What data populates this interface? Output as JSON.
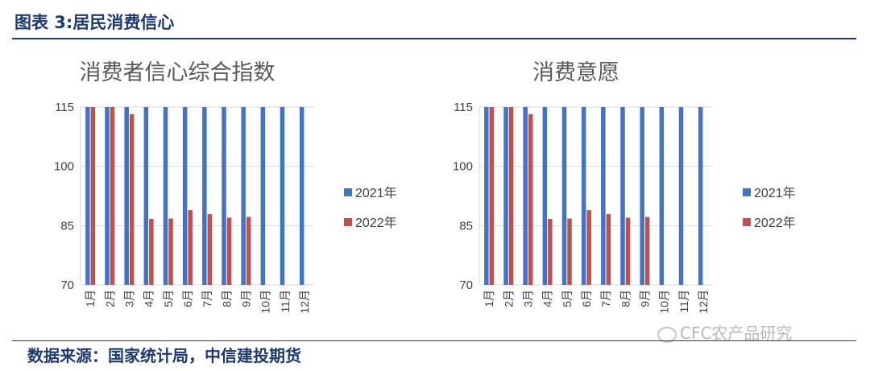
{
  "figure": {
    "title": "图表 3:居民消费信心",
    "source": "数据来源：国家统计局，中信建投期货",
    "watermark": "CFC农产品研究"
  },
  "colors": {
    "series_2021": "#4472c4",
    "series_2022": "#c0504d",
    "axis": "#d9d9d9",
    "rule": "#1f3a6b"
  },
  "chart_data": [
    {
      "type": "bar",
      "title": "消费者信心综合指数",
      "categories": [
        "1月",
        "2月",
        "3月",
        "4月",
        "5月",
        "6月",
        "7月",
        "8月",
        "9月",
        "10月",
        "11月",
        "12月"
      ],
      "series": [
        {
          "name": "2021年",
          "values": [
            115,
            115,
            115,
            115,
            115,
            115,
            115,
            115,
            115,
            115,
            115,
            115
          ]
        },
        {
          "name": "2022年",
          "values": [
            115,
            115,
            113.2,
            86.7,
            86.8,
            88.9,
            87.9,
            87.0,
            87.2,
            null,
            null,
            null
          ]
        }
      ],
      "ylim": [
        70,
        115
      ],
      "yticks": [
        70,
        85,
        100,
        115
      ],
      "legend": "right",
      "grid": true
    },
    {
      "type": "bar",
      "title": "消费意愿",
      "categories": [
        "1月",
        "2月",
        "3月",
        "4月",
        "5月",
        "6月",
        "7月",
        "8月",
        "9月",
        "10月",
        "11月",
        "12月"
      ],
      "series": [
        {
          "name": "2021年",
          "values": [
            115,
            115,
            115,
            115,
            115,
            115,
            115,
            115,
            115,
            115,
            115,
            115
          ]
        },
        {
          "name": "2022年",
          "values": [
            115,
            115,
            113.2,
            86.7,
            86.8,
            88.9,
            87.9,
            87.0,
            87.2,
            null,
            null,
            null
          ]
        }
      ],
      "ylim": [
        70,
        115
      ],
      "yticks": [
        70,
        85,
        100,
        115
      ],
      "legend": "right",
      "grid": true
    }
  ]
}
